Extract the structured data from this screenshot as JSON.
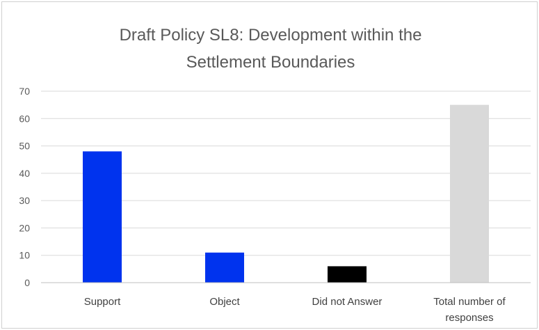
{
  "chart_data": {
    "type": "bar",
    "title_lines": [
      "Draft Policy SL8:  Development within the",
      "Settlement Boundaries"
    ],
    "categories": [
      [
        "Support"
      ],
      [
        "Object"
      ],
      [
        "Did not Answer"
      ],
      [
        "Total number of",
        "responses"
      ]
    ],
    "values": [
      48,
      11,
      6,
      65
    ],
    "bar_colors": [
      "#0033ee",
      "#0033ee",
      "#000000",
      "#d9d9d9"
    ],
    "ylim": [
      0,
      70
    ],
    "yticks": [
      "0",
      "10",
      "20",
      "30",
      "40",
      "50",
      "60",
      "70"
    ],
    "grid": true,
    "legend": "none",
    "xlabel": "",
    "ylabel": ""
  }
}
